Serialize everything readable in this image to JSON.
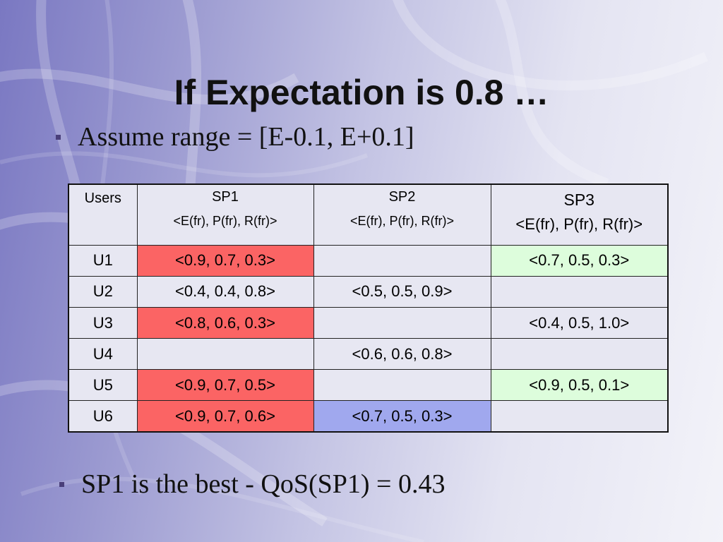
{
  "slide": {
    "title": "If Expectation is 0.8 …",
    "bullet1": "Assume range = [E-0.1, E+0.1]",
    "bullet2": "SP1 is the best - QoS(SP1) = 0.43"
  },
  "colors": {
    "highlight_red": "#fb6464",
    "highlight_green": "#ddfddc",
    "highlight_blue": "#a0a8ee",
    "cell_default": "#e7e7f2"
  },
  "table": {
    "headers": {
      "users": "Users",
      "sp1_name": "SP1",
      "sp1_tuple": "<E(fr), P(fr), R(fr)>",
      "sp2_name": "SP2",
      "sp2_tuple": "<E(fr), P(fr), R(fr)>",
      "sp3_name": "SP3",
      "sp3_tuple": "<E(fr), P(fr), R(fr)>"
    },
    "rows": [
      {
        "user": "U1",
        "sp1": "<0.9, 0.7, 0.3>",
        "sp2": "",
        "sp3": "<0.7, 0.5, 0.3>"
      },
      {
        "user": "U2",
        "sp1": "<0.4, 0.4, 0.8>",
        "sp2": "<0.5, 0.5, 0.9>",
        "sp3": ""
      },
      {
        "user": "U3",
        "sp1": "<0.8, 0.6, 0.3>",
        "sp2": "",
        "sp3": "<0.4, 0.5, 1.0>"
      },
      {
        "user": "U4",
        "sp1": "",
        "sp2": "<0.6, 0.6, 0.8>",
        "sp3": ""
      },
      {
        "user": "U5",
        "sp1": "<0.9, 0.7, 0.5>",
        "sp2": "",
        "sp3": "<0.9, 0.5, 0.1>"
      },
      {
        "user": "U6",
        "sp1": "<0.9, 0.7, 0.6>",
        "sp2": "<0.7, 0.5, 0.3>",
        "sp3": ""
      }
    ]
  }
}
